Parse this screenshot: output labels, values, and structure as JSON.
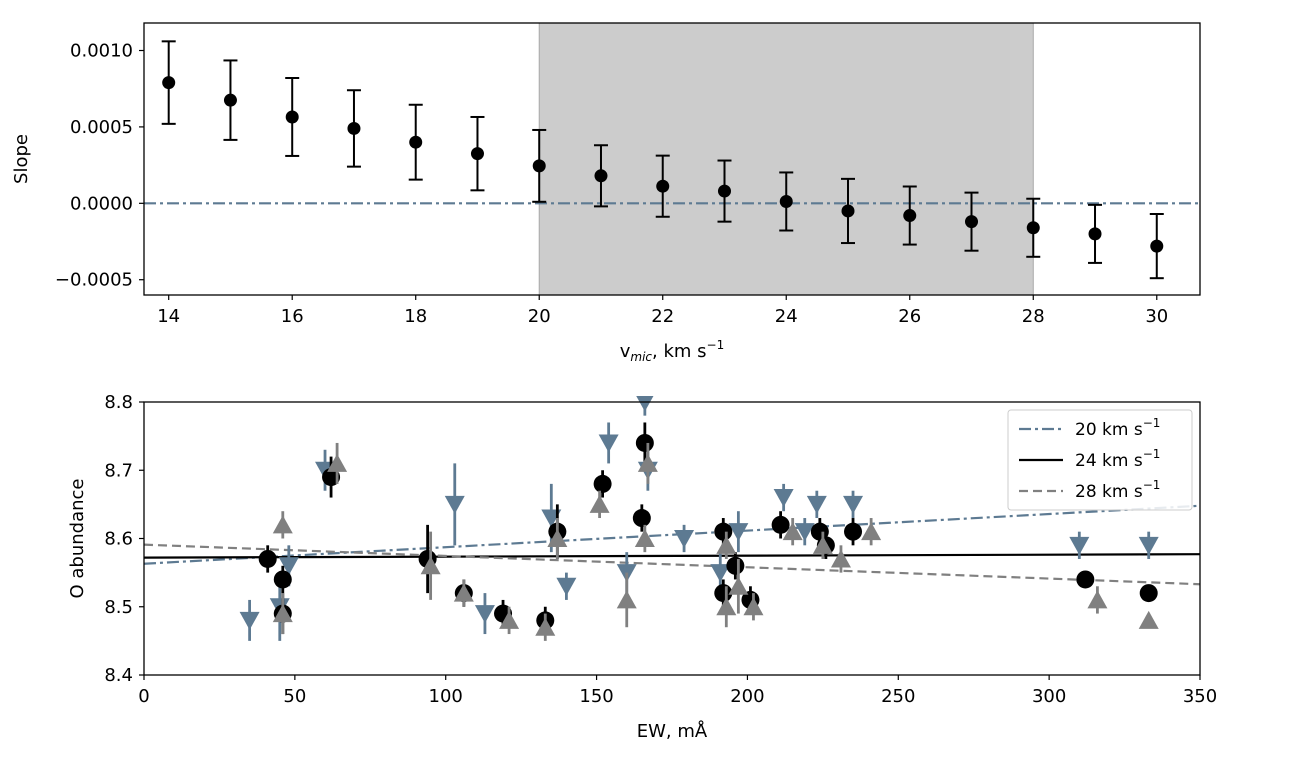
{
  "chart_data": [
    {
      "type": "scatter",
      "panel": "top",
      "title": "",
      "xlabel": "v_mic, km s^-1",
      "xlabel_parts": {
        "main": "v",
        "sub": "mic",
        "rest": ", km s",
        "sup": "−1"
      },
      "ylabel": "Slope",
      "xlim": [
        13.6,
        30.7
      ],
      "ylim": [
        -0.0006,
        0.00118
      ],
      "xticks": [
        14,
        16,
        18,
        20,
        22,
        24,
        26,
        28,
        30
      ],
      "xtick_labels": [
        "14",
        "16",
        "18",
        "20",
        "22",
        "24",
        "26",
        "28",
        "30"
      ],
      "yticks": [
        -0.0005,
        0.0,
        0.0005,
        0.001
      ],
      "ytick_labels": [
        "−0.0005",
        "0.0000",
        "0.0005",
        "0.0010"
      ],
      "shaded_region": {
        "x": [
          20,
          28
        ],
        "color": "#cccccc"
      },
      "reference_line": {
        "y": 0,
        "style": "dashdot",
        "color": "#5d7a92"
      },
      "series": [
        {
          "name": "slope",
          "color": "#000000",
          "x": [
            14,
            15,
            16,
            17,
            18,
            19,
            20,
            21,
            22,
            23,
            24,
            25,
            26,
            27,
            28,
            29,
            30
          ],
          "y": [
            0.00079,
            0.000675,
            0.000565,
            0.00049,
            0.0004,
            0.000325,
            0.000245,
            0.00018,
            0.000112,
            8e-05,
            1.2e-05,
            -5e-05,
            -8e-05,
            -0.00012,
            -0.00016,
            -0.0002,
            -0.00028
          ],
          "yerr": [
            0.00027,
            0.00026,
            0.000255,
            0.00025,
            0.000245,
            0.00024,
            0.000235,
            0.0002,
            0.0002,
            0.0002,
            0.00019,
            0.00021,
            0.00019,
            0.00019,
            0.00019,
            0.00019,
            0.00021
          ]
        }
      ]
    },
    {
      "type": "scatter",
      "panel": "bottom",
      "title": "",
      "xlabel": "EW, mÅ",
      "ylabel": "O abundance",
      "xlim": [
        0,
        350
      ],
      "ylim": [
        8.4,
        8.8
      ],
      "xticks": [
        0,
        50,
        100,
        150,
        200,
        250,
        300,
        350
      ],
      "xtick_labels": [
        "0",
        "50",
        "100",
        "150",
        "200",
        "250",
        "300",
        "350"
      ],
      "yticks": [
        8.4,
        8.5,
        8.6,
        8.7,
        8.8
      ],
      "ytick_labels": [
        "8.4",
        "8.5",
        "8.6",
        "8.7",
        "8.8"
      ],
      "legend_position": "top-right",
      "series": [
        {
          "name": "20 km s^-1",
          "legend_parts": {
            "main": "20 km s",
            "sup": "−1"
          },
          "marker": "triangle-down",
          "color": "#5d7a92",
          "fit": {
            "style": "dashdot",
            "y_at_0": 8.563,
            "y_at_350": 8.648
          },
          "x": [
            35,
            45,
            48,
            60,
            103,
            113,
            135,
            140,
            154,
            160,
            167,
            179,
            191,
            197,
            212,
            219,
            223,
            235,
            310,
            333,
            166
          ],
          "y": [
            8.48,
            8.5,
            8.56,
            8.7,
            8.65,
            8.49,
            8.63,
            8.53,
            8.74,
            8.55,
            8.7,
            8.6,
            8.55,
            8.61,
            8.66,
            8.61,
            8.65,
            8.65,
            8.59,
            8.59,
            8.8
          ],
          "yerr": [
            0.03,
            0.05,
            0.03,
            0.03,
            0.06,
            0.03,
            0.05,
            0.02,
            0.03,
            0.03,
            0.03,
            0.02,
            0.03,
            0.03,
            0.02,
            0.02,
            0.02,
            0.02,
            0.02,
            0.02,
            0.02
          ]
        },
        {
          "name": "24 km s^-1",
          "legend_parts": {
            "main": "24 km s",
            "sup": "−1"
          },
          "marker": "circle",
          "color": "#000000",
          "fit": {
            "style": "solid",
            "y_at_0": 8.572,
            "y_at_350": 8.577
          },
          "x": [
            41,
            46,
            46,
            62,
            94,
            106,
            119,
            133,
            137,
            152,
            165,
            166,
            192,
            192,
            196,
            201,
            211,
            224,
            226,
            235,
            312,
            333
          ],
          "y": [
            8.57,
            8.54,
            8.49,
            8.69,
            8.57,
            8.52,
            8.49,
            8.48,
            8.61,
            8.68,
            8.63,
            8.74,
            8.61,
            8.52,
            8.56,
            8.51,
            8.62,
            8.61,
            8.59,
            8.61,
            8.54,
            8.52
          ],
          "yerr": [
            0.02,
            0.02,
            0.03,
            0.03,
            0.05,
            0.02,
            0.02,
            0.02,
            0.04,
            0.02,
            0.02,
            0.03,
            0.02,
            0.02,
            0.02,
            0.02,
            0.02,
            0.02,
            0.02,
            0.02,
            0.01,
            0.01
          ]
        },
        {
          "name": "28 km s^-1",
          "legend_parts": {
            "main": "28 km s",
            "sup": "−1"
          },
          "marker": "triangle-up",
          "color": "#808080",
          "fit": {
            "style": "dashed",
            "y_at_0": 8.591,
            "y_at_350": 8.533
          },
          "x": [
            46,
            46,
            64,
            95,
            106,
            121,
            133,
            137,
            151,
            160,
            166,
            167,
            193,
            193,
            197,
            202,
            215,
            225,
            231,
            241,
            316,
            333
          ],
          "y": [
            8.62,
            8.49,
            8.71,
            8.56,
            8.52,
            8.48,
            8.47,
            8.6,
            8.65,
            8.51,
            8.6,
            8.71,
            8.59,
            8.5,
            8.53,
            8.5,
            8.61,
            8.59,
            8.57,
            8.61,
            8.51,
            8.48
          ],
          "yerr": [
            0.02,
            0.03,
            0.03,
            0.05,
            0.02,
            0.02,
            0.02,
            0.03,
            0.02,
            0.04,
            0.02,
            0.03,
            0.02,
            0.03,
            0.04,
            0.02,
            0.02,
            0.02,
            0.02,
            0.02,
            0.02,
            0.01
          ]
        }
      ]
    }
  ]
}
